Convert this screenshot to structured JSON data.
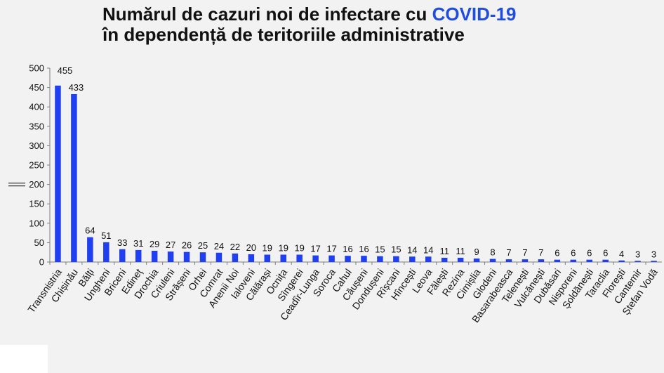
{
  "title": {
    "line1_prefix": "Numărul de cazuri noi de infectare cu ",
    "line1_highlight": "COVID-19",
    "line2": "în dependență de teritoriile administrative"
  },
  "colors": {
    "bar": "#1f3ff0",
    "title_highlight": "#1f4de0",
    "background": "#f2f2f2"
  },
  "chart_data": {
    "type": "bar",
    "categories": [
      "Transnistria",
      "Chișinău",
      "Bălți",
      "Ungheni",
      "Briceni",
      "Edineț",
      "Drochia",
      "Criuleni",
      "Strășeni",
      "Orhei",
      "Comrat",
      "Anenii Noi",
      "Ialoveni",
      "Călărași",
      "Ocnița",
      "Sîngerei",
      "Ceadîr-Lunga",
      "Soroca",
      "Cahul",
      "Căușeni",
      "Dondușeni",
      "Rîșcani",
      "Hîncești",
      "Leova",
      "Fălești",
      "Rezina",
      "Cimișlia",
      "Glodeni",
      "Basarabeasca",
      "Telenești",
      "Vulcănești",
      "Dubăsari",
      "Nisporeni",
      "Șoldănești",
      "Taraclia",
      "Florești",
      "Cantemir",
      "Ștefan Vodă"
    ],
    "values": [
      455,
      433,
      64,
      51,
      33,
      31,
      29,
      27,
      26,
      25,
      24,
      22,
      20,
      19,
      19,
      19,
      17,
      17,
      16,
      16,
      15,
      15,
      14,
      14,
      11,
      11,
      9,
      8,
      7,
      7,
      7,
      6,
      6,
      6,
      6,
      4,
      3,
      3
    ],
    "yticks": [
      "0",
      "50",
      "100",
      "150",
      "200",
      "250",
      "300",
      "350",
      "400",
      "450",
      "500"
    ],
    "ylim": [
      0,
      500
    ],
    "axis_break": true,
    "grid": false,
    "legend": "none"
  }
}
